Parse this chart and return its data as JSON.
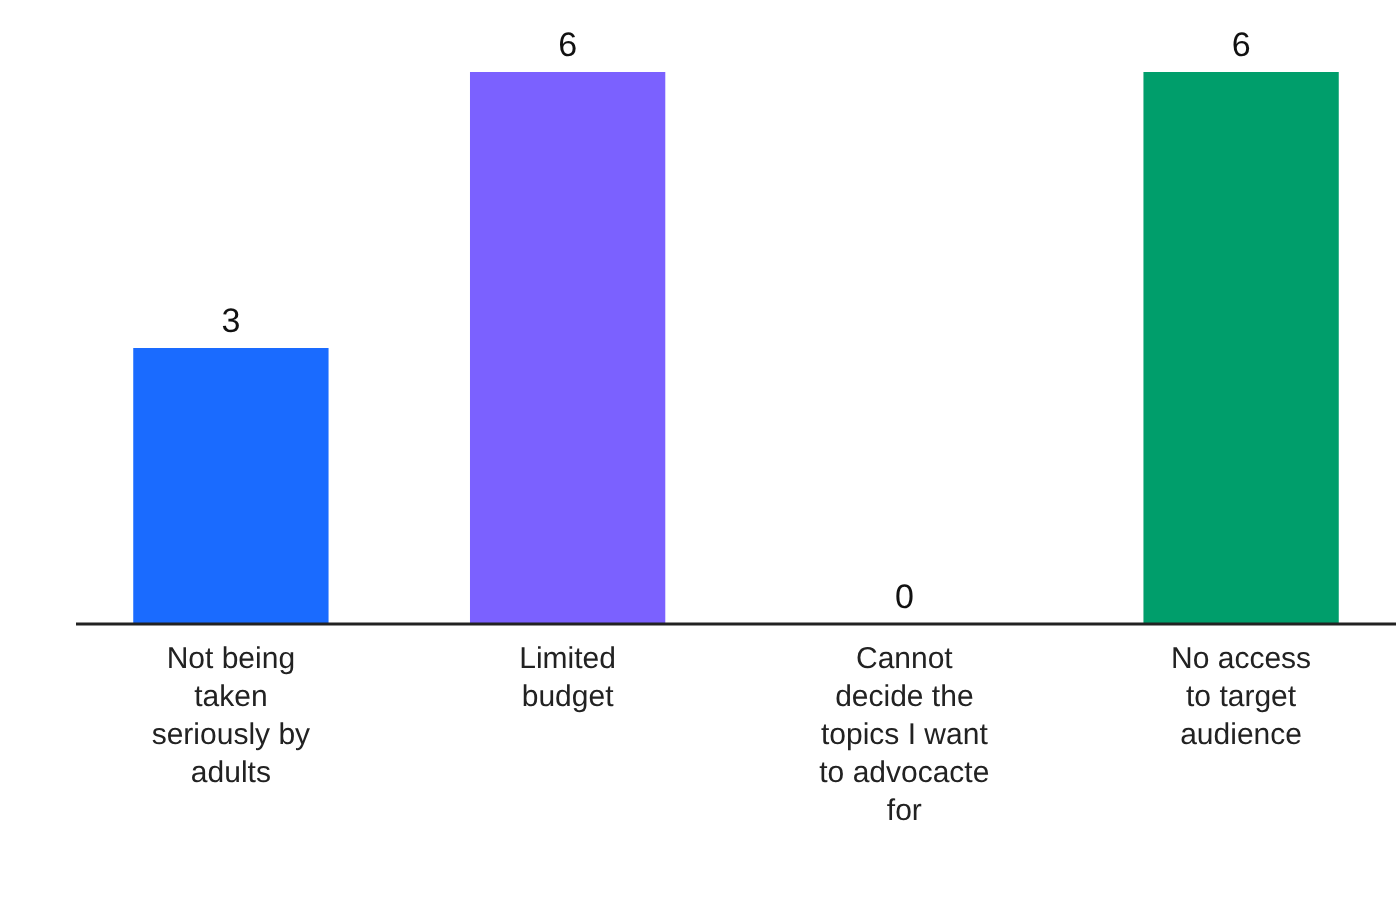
{
  "chart_data": {
    "type": "bar",
    "categories": [
      "Not being taken seriously by adults",
      "Limited budget",
      "Cannot decide the topics I want to advocacte for",
      "No access to target audience"
    ],
    "values": [
      3,
      6,
      0,
      6
    ],
    "colors": [
      "#1a6bff",
      "#7b61ff",
      "#d9d9d9",
      "#009e6b"
    ],
    "data_labels": true,
    "relative": false
  }
}
